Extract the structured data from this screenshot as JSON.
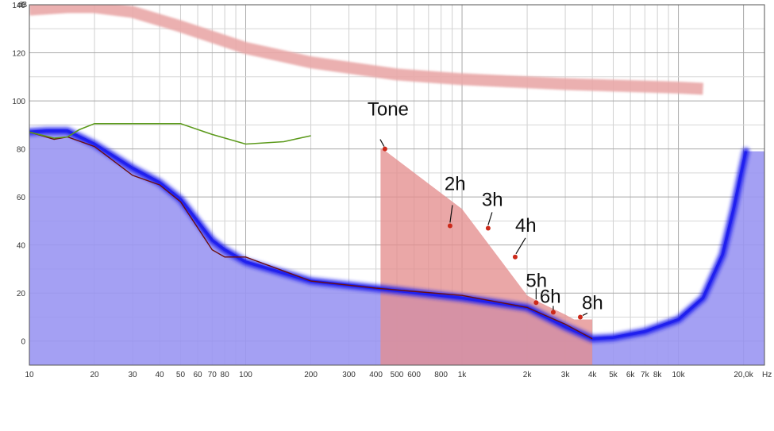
{
  "chart_data": {
    "type": "area",
    "y_unit_label": "dB",
    "x_unit_label": "Hz",
    "xscale": "log",
    "xlim": [
      10,
      25000
    ],
    "ylim": [
      -10,
      140
    ],
    "grid": true,
    "colors": {
      "masking": "#e9a7a7",
      "threshold_fill": "#9a96f2",
      "threshold_line": "#2020ee",
      "green_line": "#5c9a1c",
      "dark_line": "#6b0f0f",
      "distortion_fill": "#e48e8e",
      "distortion_point": "#cc2a1a"
    },
    "x_ticks": [
      {
        "value": 10,
        "label": "10"
      },
      {
        "value": 20,
        "label": "20"
      },
      {
        "value": 30,
        "label": "30"
      },
      {
        "value": 40,
        "label": "40"
      },
      {
        "value": 50,
        "label": "50"
      },
      {
        "value": 60,
        "label": "60"
      },
      {
        "value": 70,
        "label": "70"
      },
      {
        "value": 80,
        "label": "80"
      },
      {
        "value": 100,
        "label": "100"
      },
      {
        "value": 200,
        "label": "200"
      },
      {
        "value": 300,
        "label": "300"
      },
      {
        "value": 400,
        "label": "400"
      },
      {
        "value": 500,
        "label": "500"
      },
      {
        "value": 600,
        "label": "600"
      },
      {
        "value": 800,
        "label": "800"
      },
      {
        "value": 1000,
        "label": "1k"
      },
      {
        "value": 2000,
        "label": "2k"
      },
      {
        "value": 3000,
        "label": "3k"
      },
      {
        "value": 4000,
        "label": "4k"
      },
      {
        "value": 5000,
        "label": "5k"
      },
      {
        "value": 6000,
        "label": "6k"
      },
      {
        "value": 7000,
        "label": "7k"
      },
      {
        "value": 8000,
        "label": "8k"
      },
      {
        "value": 10000,
        "label": "10k"
      },
      {
        "value": 20000,
        "label": "20,0k"
      }
    ],
    "y_ticks": [
      {
        "value": 0,
        "label": "0"
      },
      {
        "value": 20,
        "label": "20"
      },
      {
        "value": 40,
        "label": "40"
      },
      {
        "value": 60,
        "label": "60"
      },
      {
        "value": 80,
        "label": "80"
      },
      {
        "value": 100,
        "label": "100"
      },
      {
        "value": 120,
        "label": "120"
      },
      {
        "value": 140,
        "label": "140"
      }
    ],
    "series": [
      {
        "role": "masking",
        "points": [
          [
            10,
            138
          ],
          [
            15,
            139
          ],
          [
            20,
            139
          ],
          [
            30,
            137
          ],
          [
            50,
            131
          ],
          [
            100,
            122
          ],
          [
            200,
            116
          ],
          [
            500,
            111
          ],
          [
            1000,
            109
          ],
          [
            3000,
            107
          ],
          [
            10000,
            105.5
          ],
          [
            13000,
            105
          ]
        ]
      },
      {
        "role": "threshold_fill",
        "points": [
          [
            10,
            87
          ],
          [
            12,
            87.5
          ],
          [
            15,
            87.5
          ],
          [
            20,
            82
          ],
          [
            30,
            72
          ],
          [
            40,
            66
          ],
          [
            50,
            59
          ],
          [
            70,
            42
          ],
          [
            80,
            38
          ],
          [
            100,
            33
          ],
          [
            200,
            25
          ],
          [
            400,
            22
          ],
          [
            1000,
            18
          ],
          [
            2000,
            14
          ],
          [
            3000,
            6
          ],
          [
            4000,
            1
          ],
          [
            5000,
            1.5
          ],
          [
            7000,
            4
          ],
          [
            10000,
            9
          ],
          [
            13000,
            18
          ],
          [
            16000,
            36
          ],
          [
            18000,
            55
          ],
          [
            19500,
            70
          ],
          [
            20500,
            79
          ],
          [
            25000,
            79
          ]
        ]
      },
      {
        "role": "green_line",
        "points": [
          [
            10,
            87
          ],
          [
            13,
            84.5
          ],
          [
            15,
            85
          ],
          [
            17,
            88
          ],
          [
            20,
            90.5
          ],
          [
            30,
            90.5
          ],
          [
            50,
            90.5
          ],
          [
            70,
            86
          ],
          [
            100,
            82
          ],
          [
            150,
            83
          ],
          [
            200,
            85.5
          ]
        ]
      },
      {
        "role": "dark_line",
        "points": [
          [
            10,
            87
          ],
          [
            13,
            84
          ],
          [
            15,
            85
          ],
          [
            20,
            81
          ],
          [
            30,
            69
          ],
          [
            40,
            65
          ],
          [
            50,
            58
          ],
          [
            70,
            38
          ],
          [
            80,
            35
          ],
          [
            100,
            35
          ],
          [
            200,
            25
          ],
          [
            400,
            22
          ],
          [
            1000,
            19
          ],
          [
            2000,
            14
          ],
          [
            3000,
            7
          ],
          [
            4000,
            1
          ]
        ]
      },
      {
        "role": "distortion_fill",
        "points": [
          [
            420,
            80
          ],
          [
            430,
            80
          ],
          [
            1000,
            55
          ],
          [
            2000,
            19
          ],
          [
            2300,
            16
          ],
          [
            3000,
            11
          ],
          [
            3300,
            9
          ],
          [
            4000,
            9
          ]
        ]
      }
    ],
    "harmonics": [
      {
        "label": "Tone",
        "freq": 440,
        "db": 80
      },
      {
        "label": "2h",
        "freq": 880,
        "db": 48
      },
      {
        "label": "3h",
        "freq": 1320,
        "db": 47
      },
      {
        "label": "4h",
        "freq": 1760,
        "db": 35
      },
      {
        "label": "5h",
        "freq": 2200,
        "db": 16
      },
      {
        "label": "6h",
        "freq": 2640,
        "db": 12
      },
      {
        "label": "8h",
        "freq": 3520,
        "db": 10
      }
    ]
  }
}
